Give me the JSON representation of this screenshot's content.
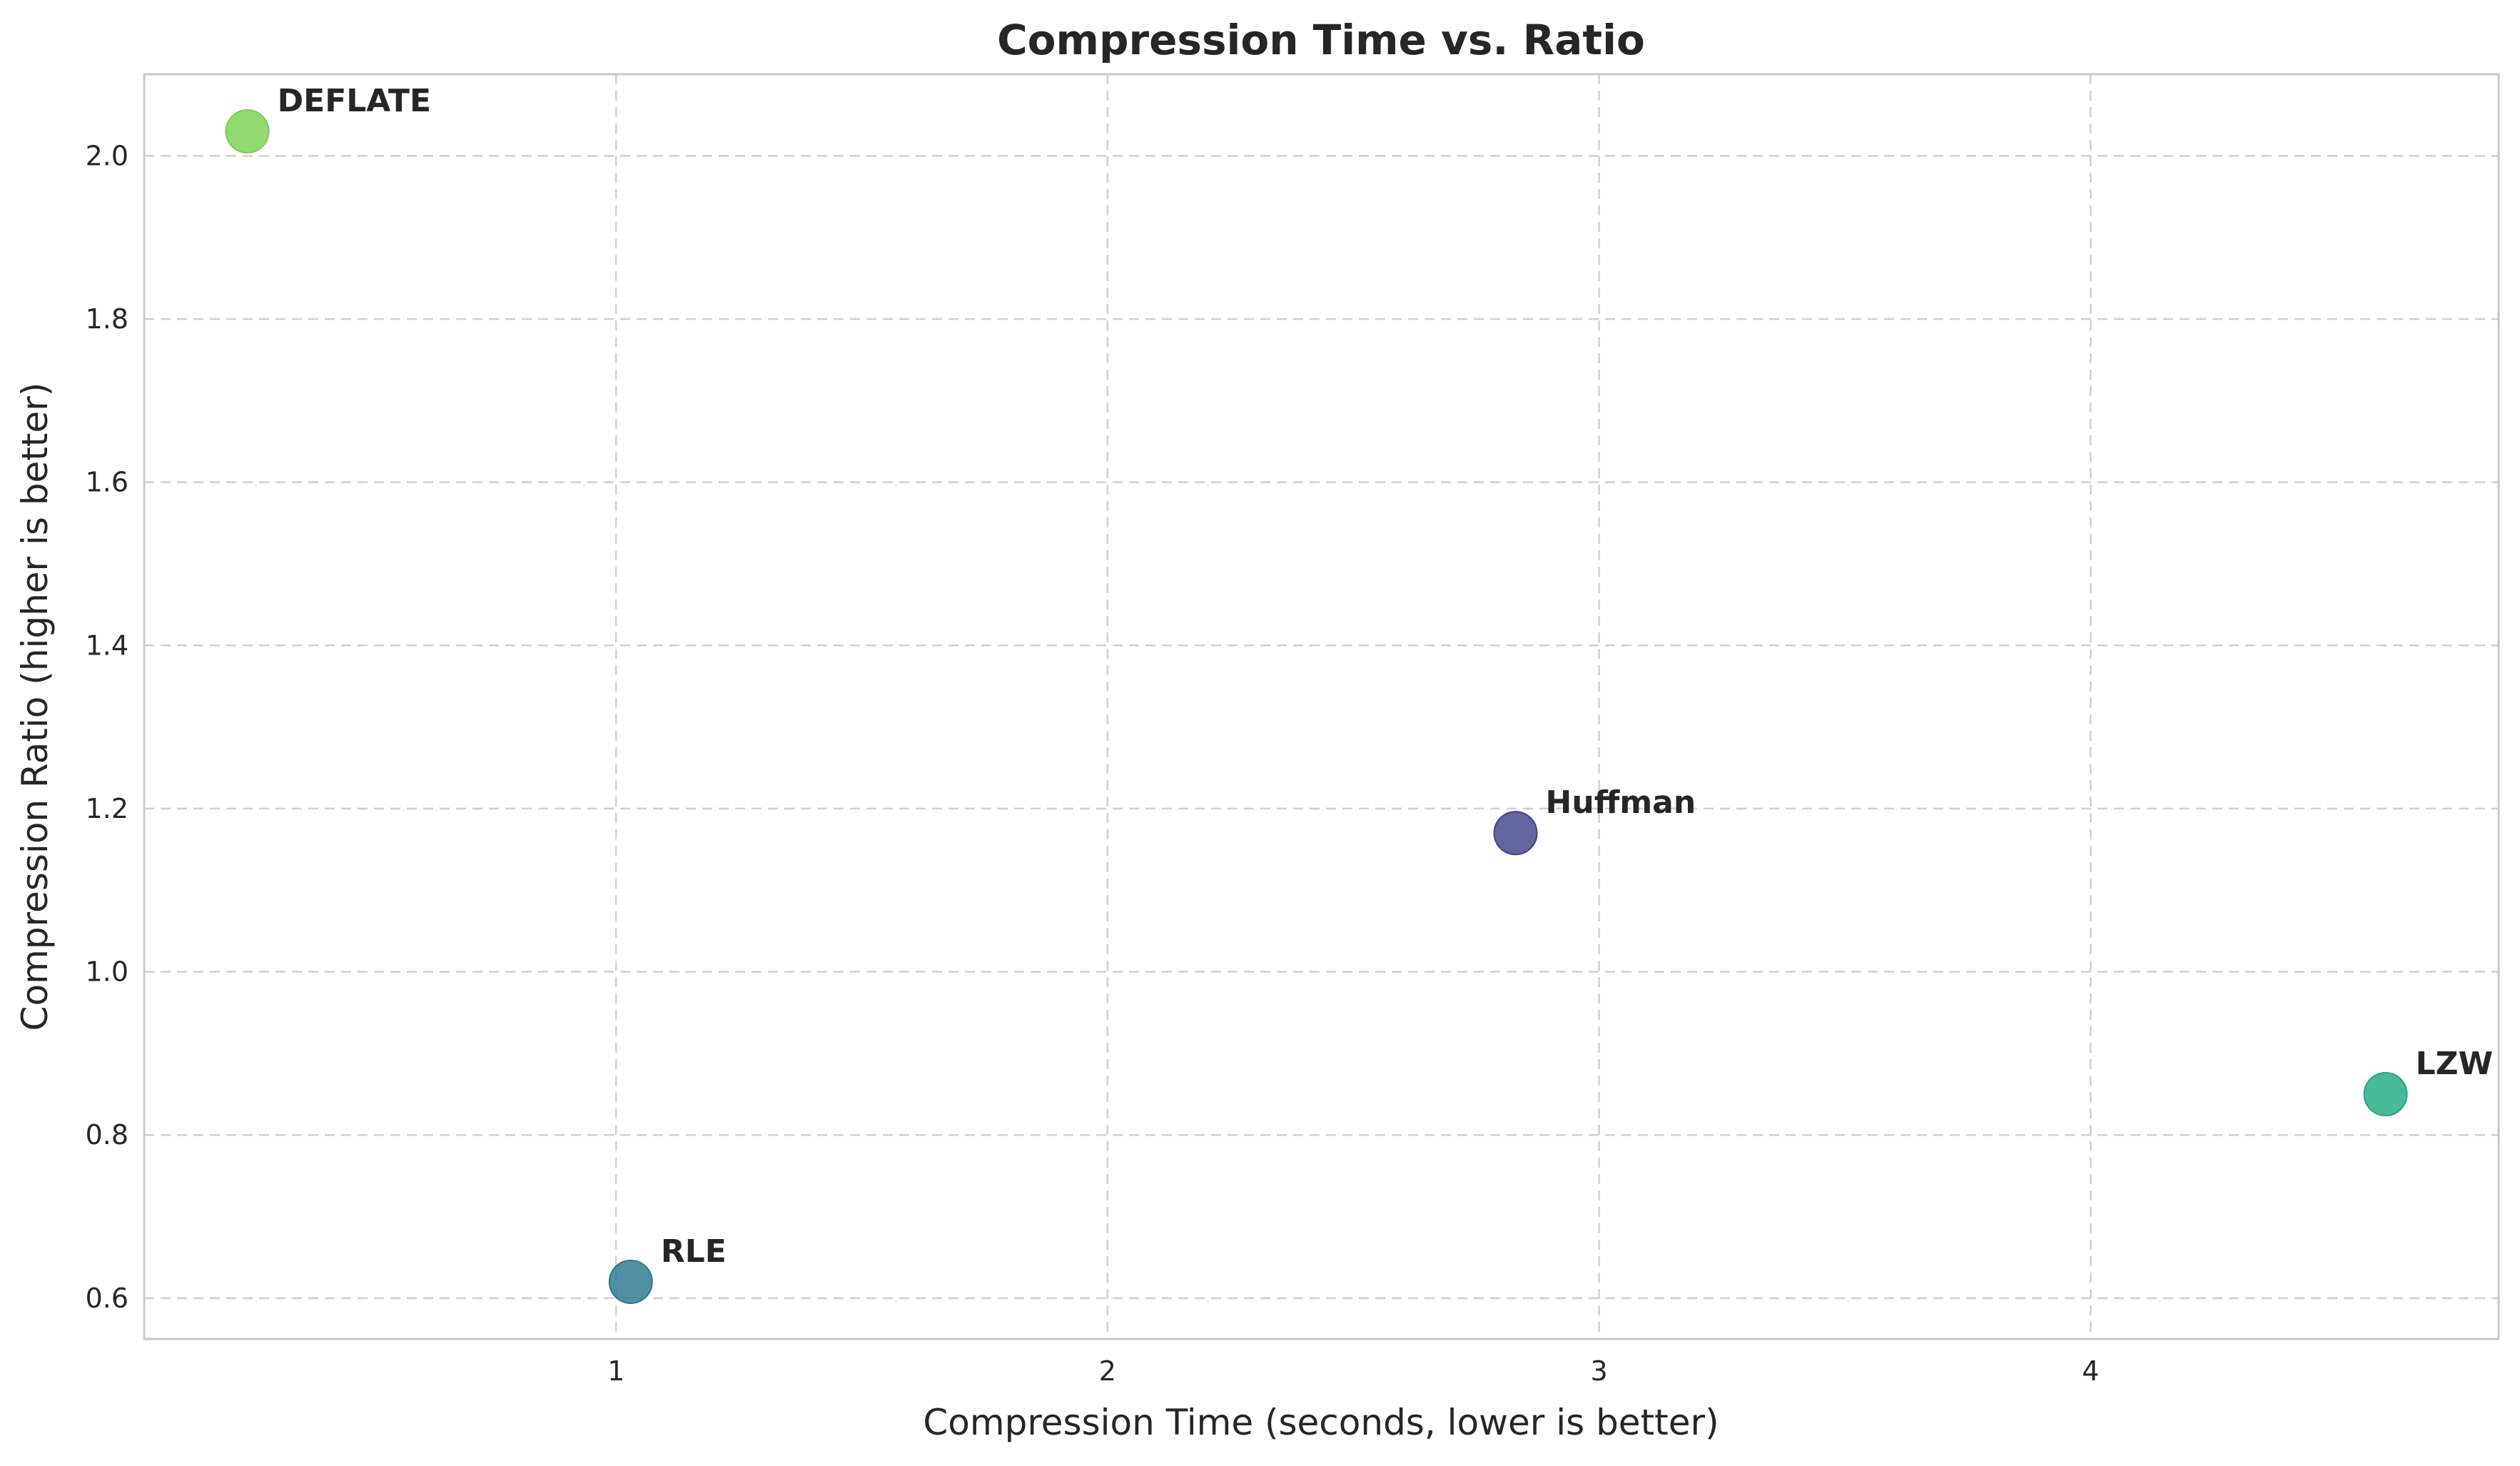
{
  "chart_data": {
    "type": "scatter",
    "title": "Compression Time vs. Ratio",
    "xlabel": "Compression Time (seconds, lower is better)",
    "ylabel": "Compression Ratio (higher is better)",
    "xlim": [
      0.04,
      4.83
    ],
    "ylim": [
      0.55,
      2.1
    ],
    "xticks": [
      1,
      2,
      3,
      4
    ],
    "yticks": [
      0.6,
      0.8,
      1.0,
      1.2,
      1.4,
      1.6,
      1.8,
      2.0
    ],
    "xtick_labels": [
      "1",
      "2",
      "3",
      "4"
    ],
    "ytick_labels": [
      "0.6",
      "0.8",
      "1.0",
      "1.2",
      "1.4",
      "1.6",
      "1.8",
      "2.0"
    ],
    "grid": true,
    "points": [
      {
        "label": "Huffman",
        "x": 2.83,
        "y": 1.17,
        "color": "#414487"
      },
      {
        "label": "LZW",
        "x": 4.6,
        "y": 0.85,
        "color": "#22a884"
      },
      {
        "label": "RLE",
        "x": 1.03,
        "y": 0.62,
        "color": "#2a788e"
      },
      {
        "label": "DEFLATE",
        "x": 0.25,
        "y": 2.03,
        "color": "#7ad151"
      }
    ]
  }
}
